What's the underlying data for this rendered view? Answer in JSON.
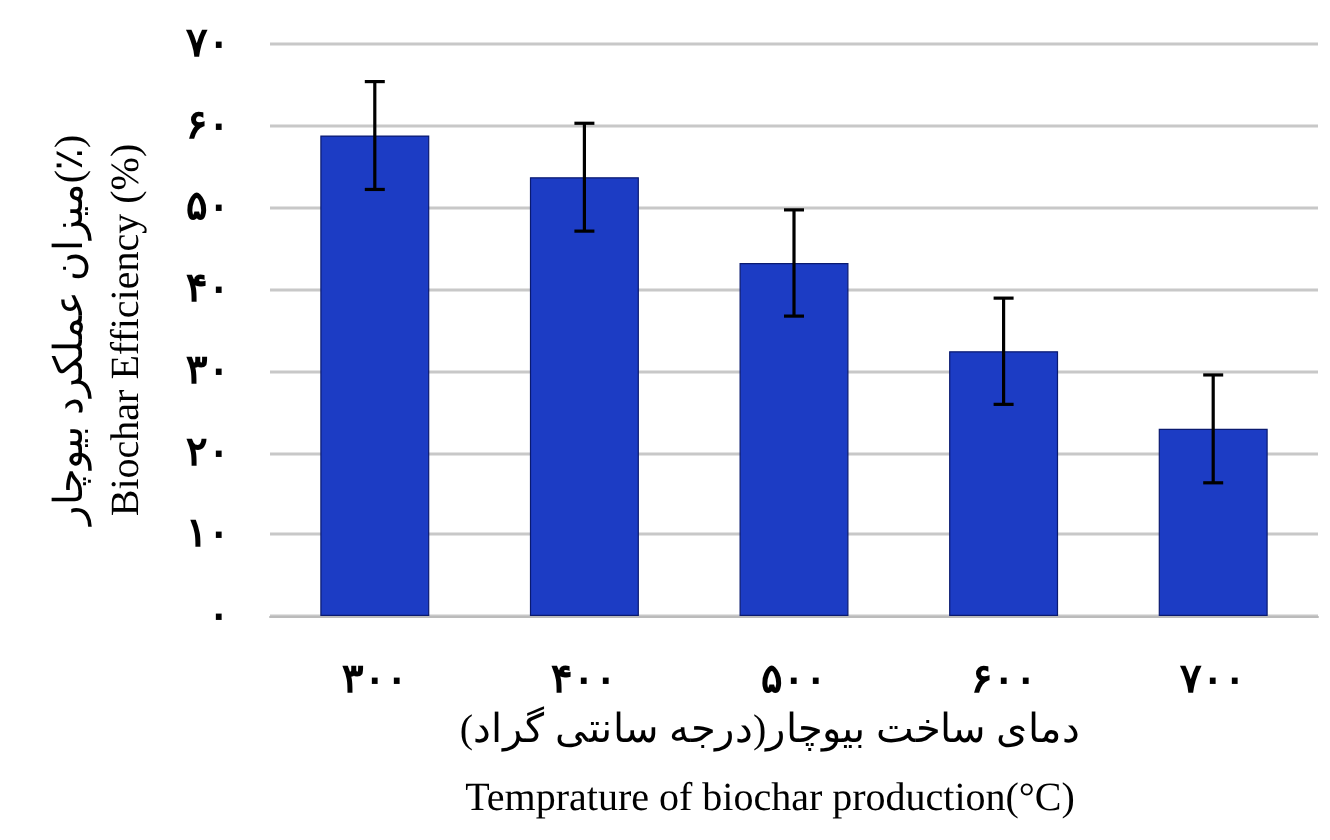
{
  "chart_data": {
    "type": "bar",
    "categories": [
      "۳۰۰",
      "۴۰۰",
      "۵۰۰",
      "۶۰۰",
      "۷۰۰"
    ],
    "values": [
      58.8,
      53.7,
      43.2,
      32.4,
      22.9
    ],
    "errors": [
      6.6,
      6.6,
      6.5,
      6.5,
      6.6
    ],
    "color": "#1c3cc4",
    "xlabel": "دمای ساخت بیوچار(درجه سانتی گراد)\nTemprature of biochar production(°C)",
    "ylabel": "میزان عملکرد بیوچار(٪)\nBiochar Efficiency (%)",
    "ylim": [
      0,
      70
    ],
    "yticks": [
      {
        "value": 0,
        "label": "۰"
      },
      {
        "value": 10,
        "label": "۱۰"
      },
      {
        "value": 20,
        "label": "۲۰"
      },
      {
        "value": 30,
        "label": "۳۰"
      },
      {
        "value": 40,
        "label": "۴۰"
      },
      {
        "value": 50,
        "label": "۵۰"
      },
      {
        "value": 60,
        "label": "۶۰"
      },
      {
        "value": 70,
        "label": "۷۰"
      }
    ],
    "grid": "y"
  }
}
